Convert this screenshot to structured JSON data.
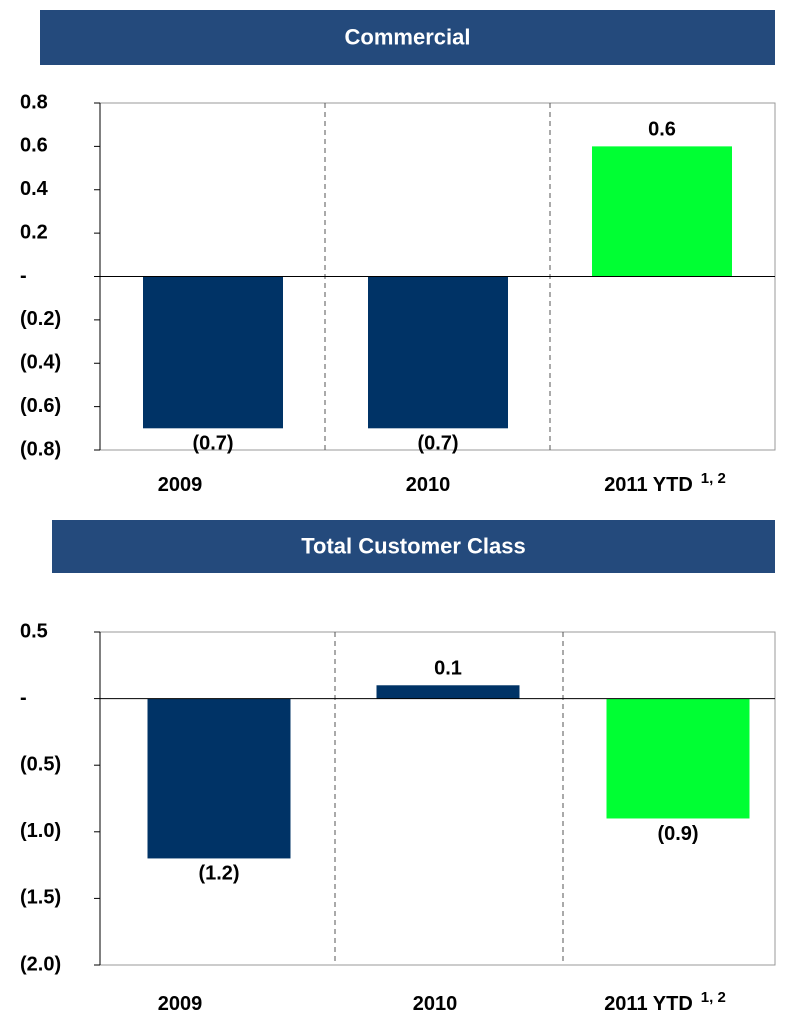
{
  "chart_data": [
    {
      "type": "bar",
      "title": "Commercial",
      "categories": [
        "2009",
        "2010",
        "2011 YTD"
      ],
      "category_superscripts": [
        null,
        null,
        "1, 2"
      ],
      "values": [
        -0.7,
        -0.7,
        0.6
      ],
      "value_labels": [
        "(0.7)",
        "(0.7)",
        "0.6"
      ],
      "colors": [
        "#003366",
        "#003366",
        "#00ff33"
      ],
      "ylim": [
        -0.8,
        0.8
      ],
      "yticks": [
        0.8,
        0.6,
        0.4,
        0.2,
        {
          "value": 0,
          "label": "-"
        },
        {
          "value": -0.2,
          "label": "(0.2)"
        },
        {
          "value": -0.4,
          "label": "(0.4)"
        },
        {
          "value": -0.6,
          "label": "(0.6)"
        },
        {
          "value": -0.8,
          "label": "(0.8)"
        }
      ]
    },
    {
      "type": "bar",
      "title": "Total Customer Class",
      "categories": [
        "2009",
        "2010",
        "2011 YTD"
      ],
      "category_superscripts": [
        null,
        null,
        "1, 2"
      ],
      "values": [
        -1.2,
        0.1,
        -0.9
      ],
      "value_labels": [
        "(1.2)",
        "0.1",
        "(0.9)"
      ],
      "colors": [
        "#003366",
        "#003366",
        "#00ff33"
      ],
      "ylim": [
        -2.0,
        0.5
      ],
      "yticks": [
        0.5,
        {
          "value": 0,
          "label": "-"
        },
        {
          "value": -0.5,
          "label": "(0.5)"
        },
        {
          "value": -1.0,
          "label": "(1.0)"
        },
        {
          "value": -1.5,
          "label": "(1.5)"
        },
        {
          "value": -2.0,
          "label": "(2.0)"
        }
      ]
    }
  ]
}
